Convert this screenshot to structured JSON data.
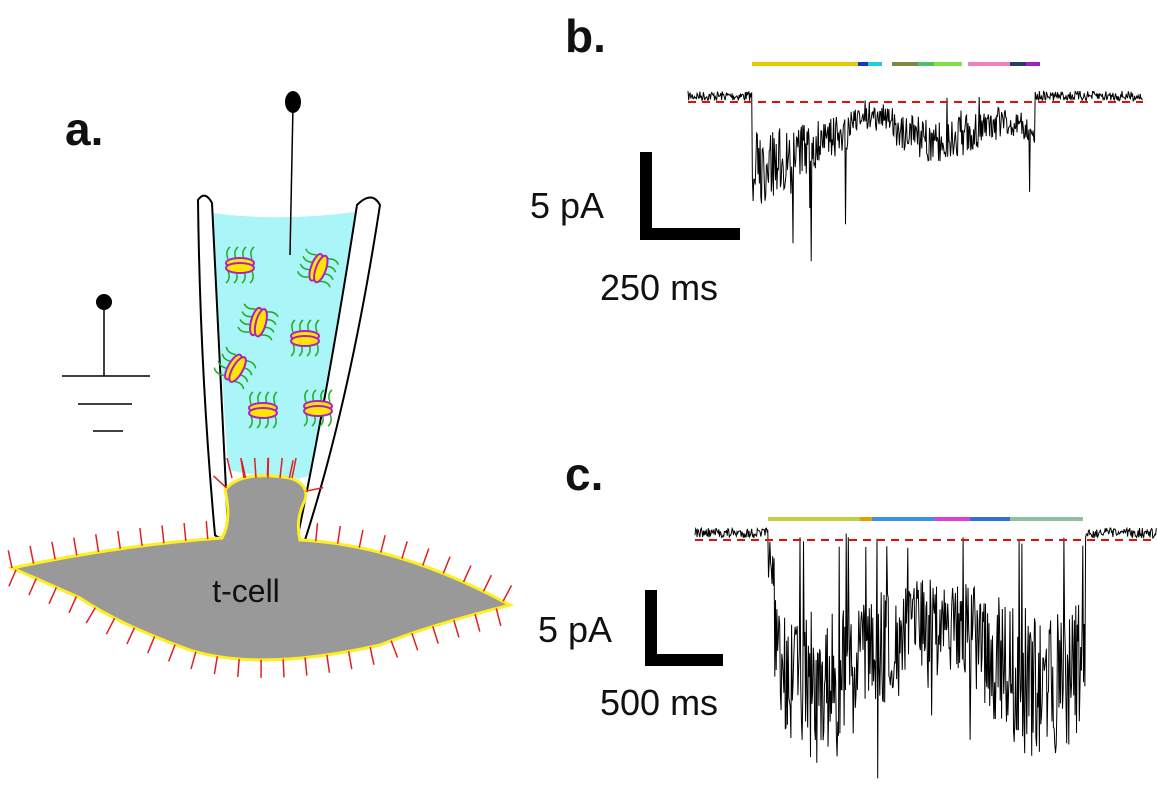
{
  "panels": [
    {
      "label": "a.",
      "cell_label": "t-cell"
    },
    {
      "label": "b.",
      "scale_current": "5 pA",
      "scale_time": "250 ms"
    },
    {
      "label": "c.",
      "scale_current": "5 pA",
      "scale_time": "500 ms"
    }
  ]
}
